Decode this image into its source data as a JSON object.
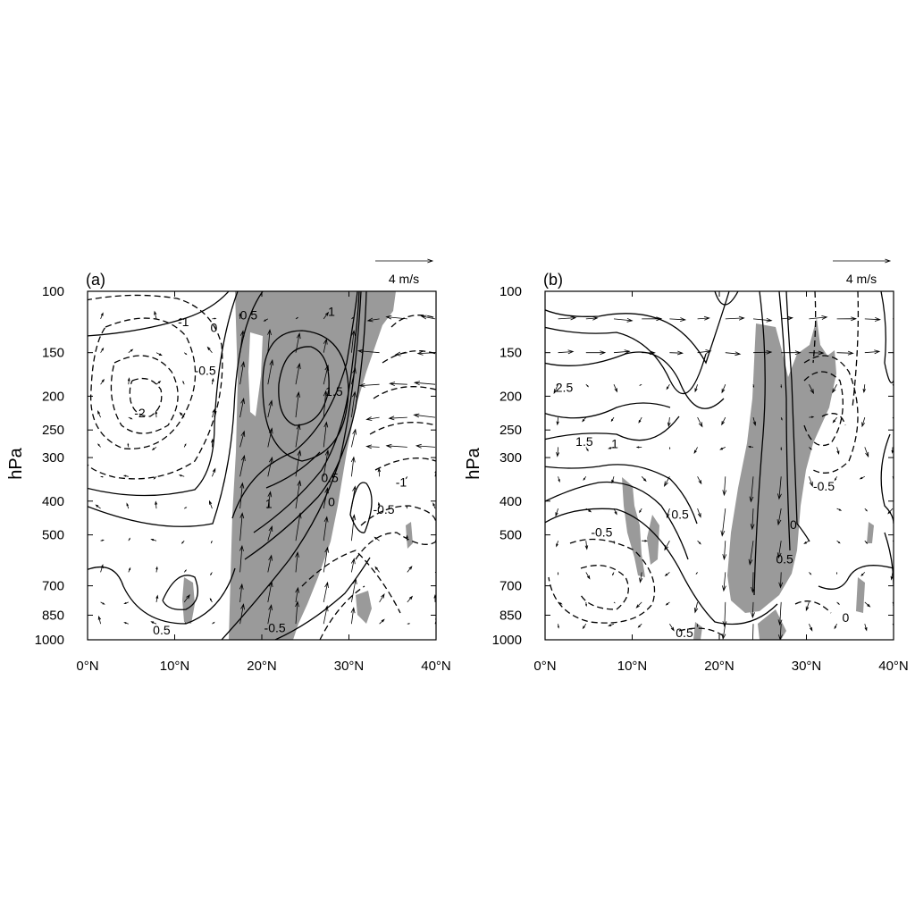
{
  "chart_data": [
    {
      "type": "contour",
      "panel_label": "(a)",
      "ylabel": "hPa",
      "reference_vector_label": "4 m/s",
      "x_ticks": [
        "0°N",
        "10°N",
        "20°N",
        "30°N",
        "40°N"
      ],
      "x_values": [
        0,
        10,
        20,
        30,
        40
      ],
      "y_ticks": [
        "100",
        "150",
        "200",
        "250",
        "300",
        "400",
        "500",
        "700",
        "850",
        "1000"
      ],
      "y_values": [
        100,
        150,
        200,
        250,
        300,
        400,
        500,
        700,
        850,
        1000
      ],
      "xlim": [
        0,
        40
      ],
      "ylim": [
        1000,
        100
      ],
      "y_scale": "log",
      "contour_labels": [
        {
          "text": "0.5",
          "lat": 18.5,
          "p": 118
        },
        {
          "text": "1",
          "lat": 28,
          "p": 115
        },
        {
          "text": "-1",
          "lat": 11,
          "p": 123
        },
        {
          "text": "0",
          "lat": 14.5,
          "p": 128
        },
        {
          "text": "-0.5",
          "lat": 13.5,
          "p": 170
        },
        {
          "text": "-2",
          "lat": 6,
          "p": 225
        },
        {
          "text": "1.5",
          "lat": 28.3,
          "p": 195
        },
        {
          "text": "0.5",
          "lat": 27.8,
          "p": 345
        },
        {
          "text": "1",
          "lat": 20.8,
          "p": 410
        },
        {
          "text": "0",
          "lat": 28,
          "p": 405
        },
        {
          "text": "-1",
          "lat": 36,
          "p": 355
        },
        {
          "text": "-0.5",
          "lat": 34,
          "p": 425
        },
        {
          "text": "0.5",
          "lat": 8.5,
          "p": 945
        },
        {
          "text": "-0.5",
          "lat": 21.5,
          "p": 930
        }
      ]
    },
    {
      "type": "contour",
      "panel_label": "(b)",
      "ylabel": "hPa",
      "reference_vector_label": "4 m/s",
      "x_ticks": [
        "0°N",
        "10°N",
        "20°N",
        "30°N",
        "40°N"
      ],
      "x_values": [
        0,
        10,
        20,
        30,
        40
      ],
      "y_ticks": [
        "100",
        "150",
        "200",
        "250",
        "300",
        "400",
        "500",
        "700",
        "850",
        "1000"
      ],
      "y_values": [
        100,
        150,
        200,
        250,
        300,
        400,
        500,
        700,
        850,
        1000
      ],
      "xlim": [
        0,
        40
      ],
      "ylim": [
        1000,
        100
      ],
      "y_scale": "log",
      "contour_labels": [
        {
          "text": "2.5",
          "lat": 2.2,
          "p": 190
        },
        {
          "text": "1.5",
          "lat": 4.5,
          "p": 272
        },
        {
          "text": "1",
          "lat": 8,
          "p": 276
        },
        {
          "text": "-0.5",
          "lat": 32,
          "p": 365
        },
        {
          "text": "0.5",
          "lat": 15.5,
          "p": 440
        },
        {
          "text": "-0.5",
          "lat": 6.5,
          "p": 495
        },
        {
          "text": "0",
          "lat": 28.5,
          "p": 470
        },
        {
          "text": "0.5",
          "lat": 27.5,
          "p": 590
        },
        {
          "text": "0.5",
          "lat": 16,
          "p": 960
        },
        {
          "text": "0",
          "lat": 34.5,
          "p": 870
        }
      ]
    }
  ]
}
